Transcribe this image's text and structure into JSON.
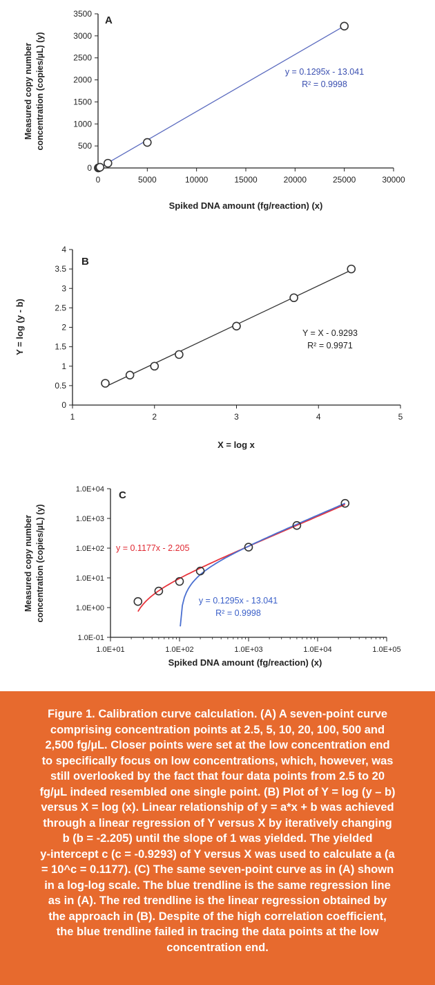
{
  "chart_data": [
    {
      "id": "A",
      "type": "scatter",
      "panel_label": "A",
      "xlabel": "Spiked DNA amount (fg/reaction) (x)",
      "ylabel_lines": [
        "Measured copy number",
        "concentration (copies/µL) (y)"
      ],
      "xlim": [
        0,
        30000
      ],
      "ylim": [
        0,
        3500
      ],
      "xticks": [
        0,
        5000,
        10000,
        15000,
        20000,
        25000,
        30000
      ],
      "yticks": [
        0,
        500,
        1000,
        1500,
        2000,
        2500,
        3000,
        3500
      ],
      "points": [
        [
          25,
          1.6
        ],
        [
          50,
          3.6
        ],
        [
          100,
          7.6
        ],
        [
          200,
          17
        ],
        [
          1000,
          108
        ],
        [
          5000,
          580
        ],
        [
          25000,
          3220
        ]
      ],
      "trendline": {
        "x_range": [
          0,
          25000
        ],
        "slope": 0.1295,
        "intercept": -13.041,
        "color": "#5b6bbf"
      },
      "equation": "y = 0.1295x - 13.041",
      "r2": "R² = 0.9998",
      "grid": false
    },
    {
      "id": "B",
      "type": "scatter",
      "panel_label": "B",
      "xlabel": "X = log x",
      "ylabel": "Y = log (y - b)",
      "xlim": [
        1,
        5
      ],
      "ylim": [
        0,
        4
      ],
      "xticks": [
        1,
        2,
        3,
        4,
        5
      ],
      "yticks": [
        0,
        0.5,
        1,
        1.5,
        2,
        2.5,
        3,
        3.5,
        4
      ],
      "points": [
        [
          1.4,
          0.56
        ],
        [
          1.7,
          0.77
        ],
        [
          2.0,
          1.0
        ],
        [
          2.3,
          1.3
        ],
        [
          3.0,
          2.03
        ],
        [
          3.7,
          2.76
        ],
        [
          4.4,
          3.5
        ]
      ],
      "trendline": {
        "x_range": [
          1.4,
          4.4
        ],
        "slope": 1,
        "intercept": -0.9293,
        "color": "#333333"
      },
      "equation": "Y = X - 0.9293",
      "r2": "R² = 0.9971",
      "grid": false
    },
    {
      "id": "C",
      "type": "scatter",
      "panel_label": "C",
      "scale": "log-log",
      "xlabel": "Spiked DNA amount (fg/reaction) (x)",
      "ylabel_lines": [
        "Measured copy number",
        "concentration (copies/µL) (y)"
      ],
      "xlim": [
        10,
        100000
      ],
      "ylim": [
        0.1,
        10000
      ],
      "xtick_values": [
        10,
        100,
        1000,
        10000,
        100000
      ],
      "xtick_labels": [
        "1.0E+01",
        "1.0E+02",
        "1.0E+03",
        "1.0E+04",
        "1.0E+05"
      ],
      "ytick_values": [
        0.1,
        1,
        10,
        100,
        1000,
        10000
      ],
      "ytick_labels": [
        "1.0E-01",
        "1.0E+00",
        "1.0E+01",
        "1.0E+02",
        "1.0E+03",
        "1.0E+04"
      ],
      "points": [
        [
          25,
          1.6
        ],
        [
          50,
          3.6
        ],
        [
          100,
          7.6
        ],
        [
          200,
          17
        ],
        [
          1000,
          108
        ],
        [
          5000,
          580
        ],
        [
          25000,
          3220
        ]
      ],
      "trendlines": [
        {
          "name": "red",
          "slope": 0.1177,
          "intercept": -2.205,
          "x_range": [
            25,
            25000
          ],
          "color": "#e8333b"
        },
        {
          "name": "blue",
          "slope": 0.1295,
          "intercept": -13.041,
          "x_range": [
            102.5,
            25000
          ],
          "color": "#4a6fd0"
        }
      ],
      "equation_red": "y = 0.1177x - 2.205",
      "equation_blue": "y = 0.1295x - 13.041",
      "r2_blue": "R² = 0.9998",
      "grid": false
    }
  ],
  "caption": {
    "text": "Figure 1. Calibration curve calculation. (A) A seven-point curve\ncomprising concentration points at 2.5, 5, 10, 20, 100, 500 and\n2,500 fg/µL. Closer points were set at the low concentration end\nto specifically focus on low concentrations, which, however, was\nstill overlooked by the fact that  four data points from 2.5 to 20\nfg/µL indeed resembled one single point. (B) Plot of Y = log (y – b)\nversus X =  log (x). Linear relationship of y = a*x +  b was achieved\nthrough a linear regression of Y versus X by iteratively changing\nb (b = -2.205) until the slope of 1 was yielded. The yielded\ny-intercept c (c = -0.9293) of Y versus X was used to calculate a (a\n= 10^c = 0.1177). (C) The same seven-point curve as in (A) shown\nin a log-log scale. The blue trendline is the same regression line\nas in (A). The red trendline is the linear regression obtained by\nthe approach in (B). Despite of the high correlation coefficient,\nthe blue trendline failed in tracing the data points at the low\nconcentration end.",
    "background": "#e76a2e",
    "color": "#ffffff"
  }
}
